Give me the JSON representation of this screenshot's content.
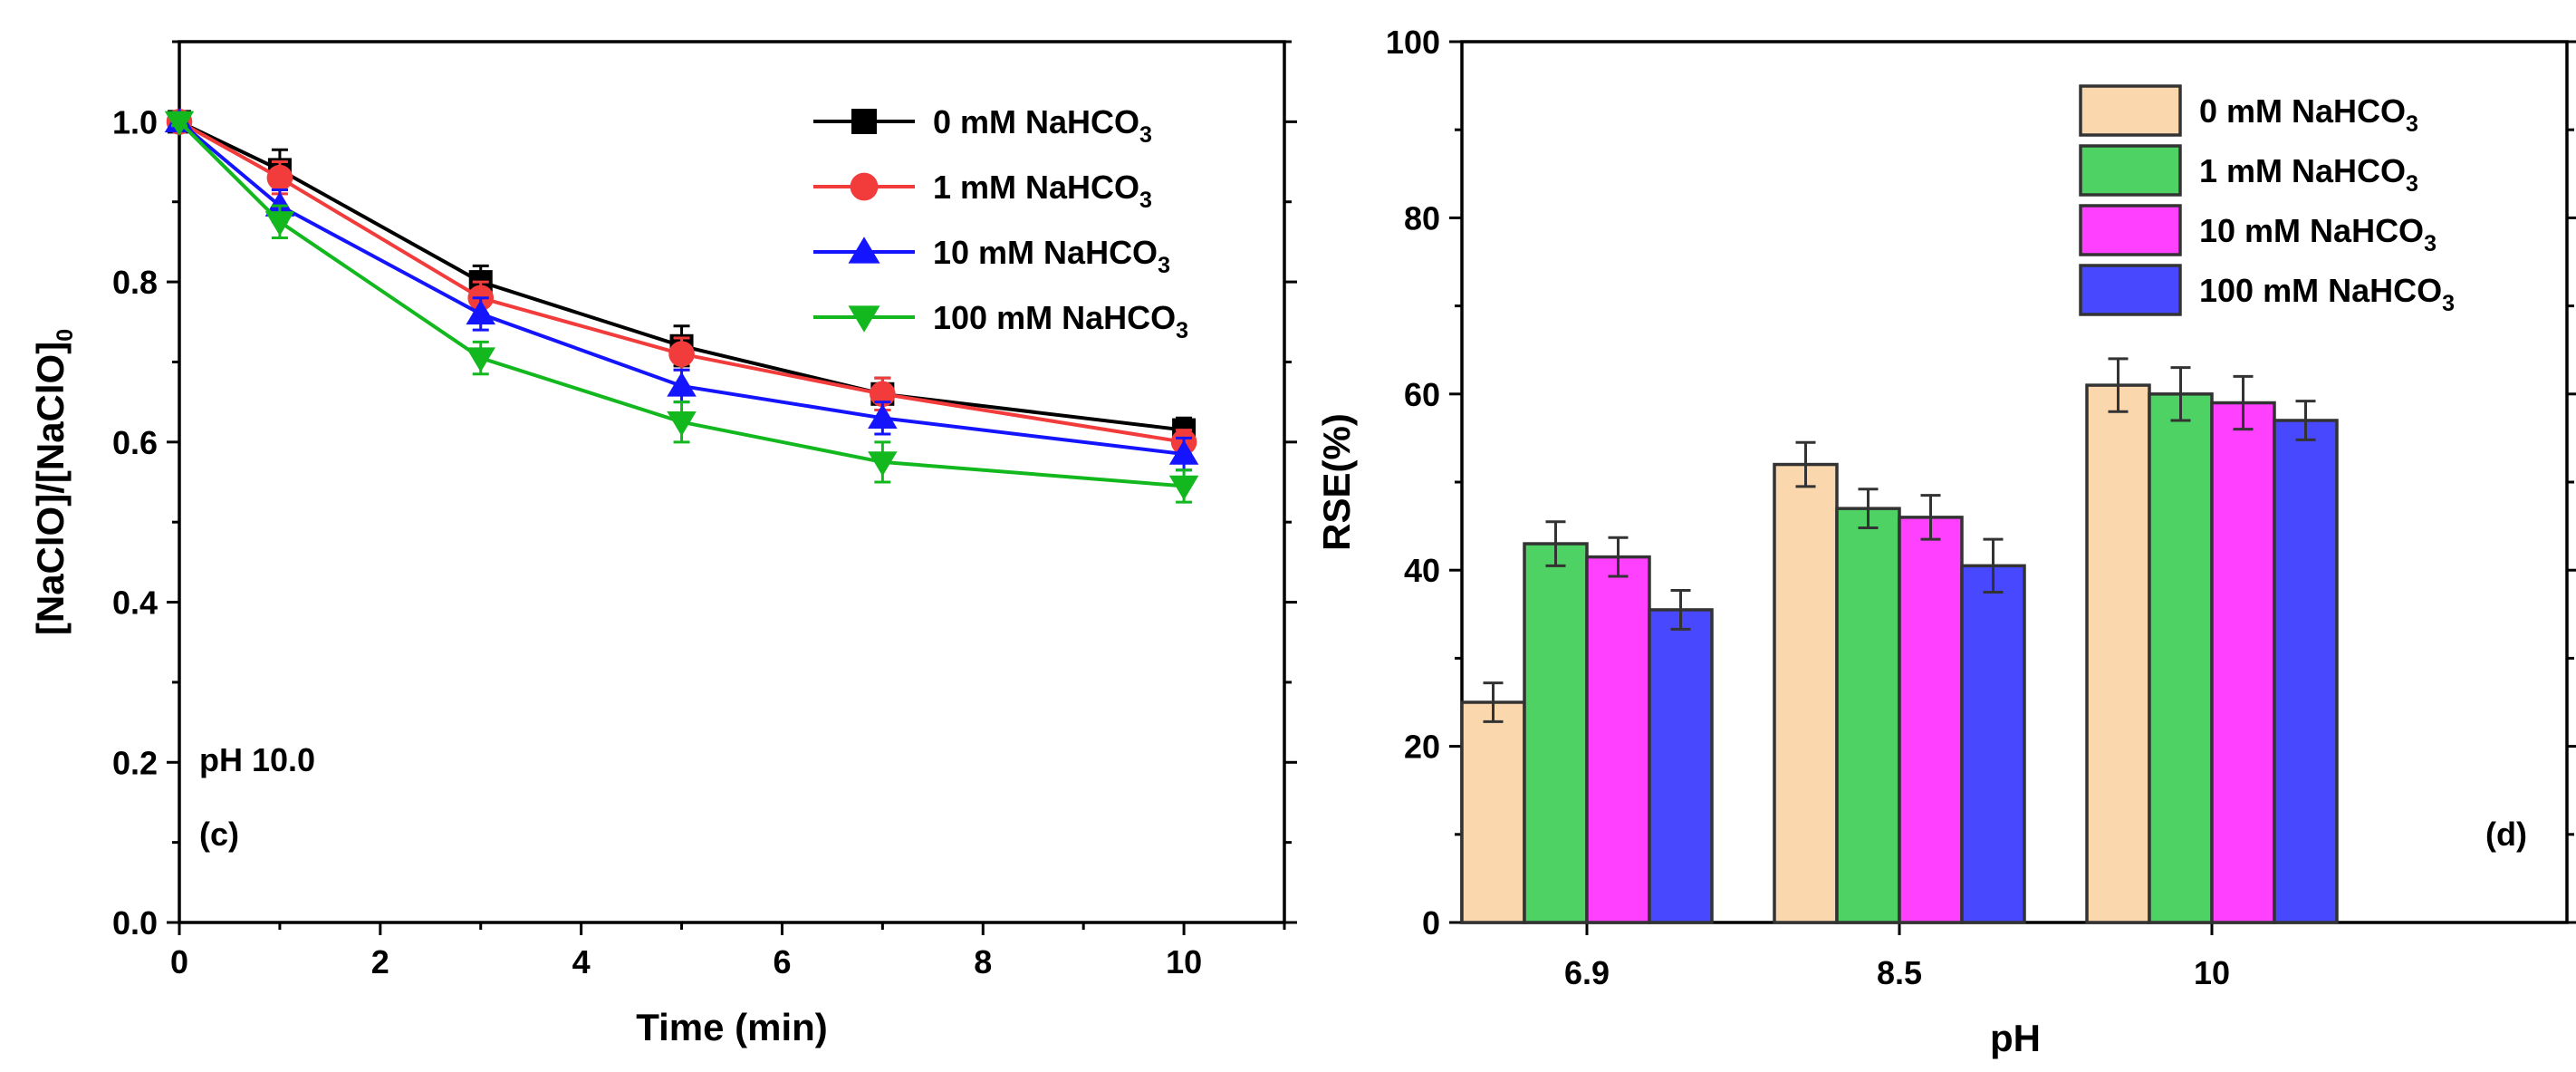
{
  "chart_data": [
    {
      "type": "line",
      "panel_label": "(c)",
      "annotation": "pH 10.0",
      "xlabel": "Time (min)",
      "ylabel_main": "[NaClO]/[NaClO]",
      "ylabel_sub": "0",
      "xlim": [
        0,
        11
      ],
      "ylim": [
        0,
        1.1
      ],
      "xticks": [
        0,
        2,
        4,
        6,
        8,
        10
      ],
      "yticks": [
        0.0,
        0.2,
        0.4,
        0.6,
        0.8,
        1.0
      ],
      "x": [
        0,
        1,
        3,
        5,
        7,
        10
      ],
      "series": [
        {
          "name": "0 mM NaHCO",
          "sub": "3",
          "color": "#000000",
          "marker": "square",
          "values": [
            1.0,
            0.94,
            0.8,
            0.72,
            0.66,
            0.615
          ],
          "errors": [
            0.005,
            0.025,
            0.02,
            0.025,
            0.02,
            0.015
          ]
        },
        {
          "name": "1 mM NaHCO",
          "sub": "3",
          "color": "#f23c3c",
          "marker": "circle",
          "values": [
            1.0,
            0.93,
            0.78,
            0.71,
            0.66,
            0.6
          ],
          "errors": [
            0.005,
            0.02,
            0.02,
            0.02,
            0.02,
            0.015
          ]
        },
        {
          "name": "10 mM NaHCO",
          "sub": "3",
          "color": "#1414ff",
          "marker": "triangle-up",
          "values": [
            1.0,
            0.895,
            0.76,
            0.67,
            0.63,
            0.585
          ],
          "errors": [
            0.005,
            0.02,
            0.02,
            0.02,
            0.02,
            0.02
          ]
        },
        {
          "name": "100 mM NaHCO",
          "sub": "3",
          "color": "#12b81e",
          "marker": "triangle-down",
          "values": [
            1.0,
            0.875,
            0.705,
            0.625,
            0.575,
            0.545
          ],
          "errors": [
            0.005,
            0.02,
            0.02,
            0.025,
            0.025,
            0.02
          ]
        }
      ]
    },
    {
      "type": "bar",
      "panel_label": "(d)",
      "xlabel": "pH",
      "ylabel": "RSE(%)",
      "ylim": [
        0,
        100
      ],
      "yticks": [
        0,
        20,
        40,
        60,
        80,
        100
      ],
      "categories": [
        "6.9",
        "8.5",
        "10"
      ],
      "series": [
        {
          "name": "0 mM NaHCO",
          "sub": "3",
          "color": "#fad7ac",
          "values": [
            25.0,
            52.0,
            61.0
          ],
          "errors": [
            2.2,
            2.5,
            3.0
          ]
        },
        {
          "name": "1 mM NaHCO",
          "sub": "3",
          "color": "#4dd263",
          "values": [
            43.0,
            47.0,
            60.0
          ],
          "errors": [
            2.5,
            2.2,
            3.0
          ]
        },
        {
          "name": "10 mM NaHCO",
          "sub": "3",
          "color": "#ff41ff",
          "values": [
            41.5,
            46.0,
            59.0
          ],
          "errors": [
            2.2,
            2.5,
            3.0
          ]
        },
        {
          "name": "100 mM NaHCO",
          "sub": "3",
          "color": "#4848ff",
          "values": [
            35.5,
            40.5,
            57.0
          ],
          "errors": [
            2.2,
            3.0,
            2.2
          ]
        }
      ]
    }
  ]
}
